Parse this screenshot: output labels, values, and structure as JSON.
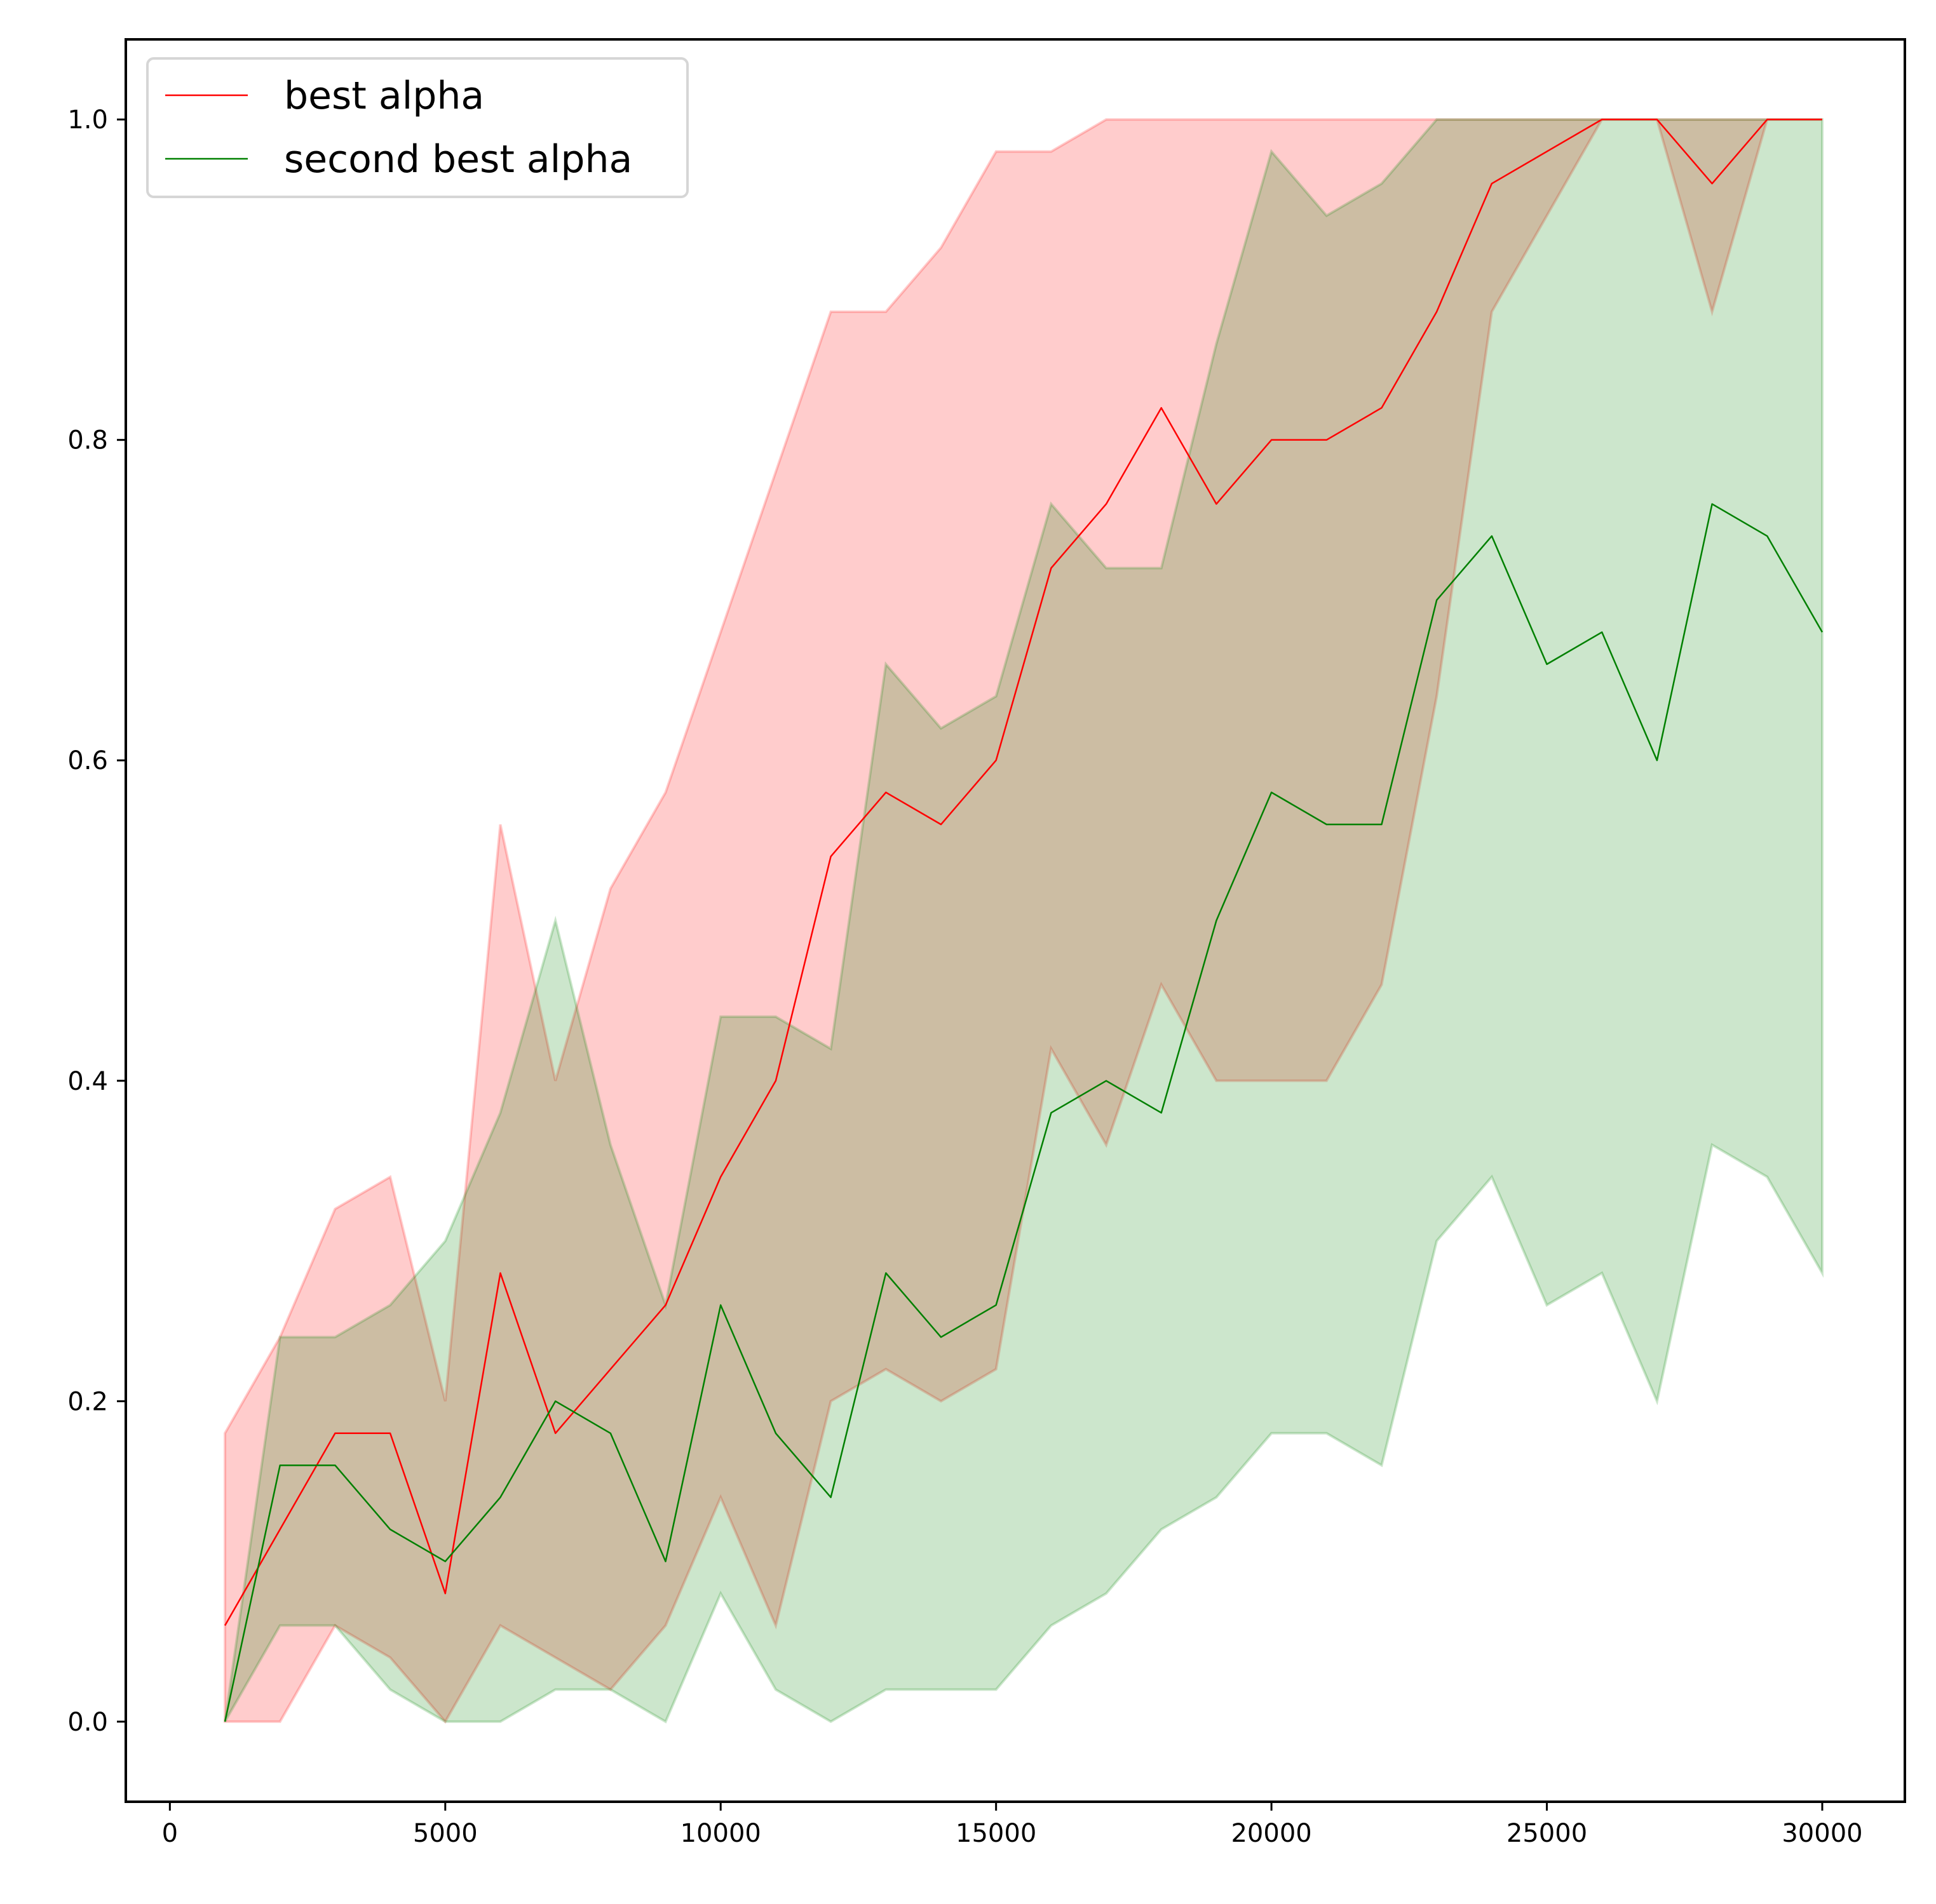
{
  "chart_data": {
    "type": "line",
    "title": "",
    "xlabel": "",
    "ylabel": "",
    "xlim": [
      -800,
      31500
    ],
    "ylim": [
      -0.05,
      1.05
    ],
    "xticks": [
      0,
      5000,
      10000,
      15000,
      20000,
      25000,
      30000
    ],
    "yticks": [
      0.0,
      0.2,
      0.4,
      0.6,
      0.8,
      1.0
    ],
    "x": [
      1000,
      2000,
      3000,
      4000,
      5000,
      6000,
      7000,
      8000,
      9000,
      10000,
      11000,
      12000,
      13000,
      14000,
      15000,
      16000,
      17000,
      18000,
      19000,
      20000,
      21000,
      22000,
      23000,
      24000,
      25000,
      26000,
      27000,
      28000,
      29000,
      30000
    ],
    "legend_position": "upper-left",
    "grid": false,
    "series": [
      {
        "name": "best alpha",
        "color": "#ff0000",
        "fill_color": "#ff0000",
        "values": [
          0.06,
          0.12,
          0.18,
          0.18,
          0.08,
          0.28,
          0.18,
          0.22,
          0.26,
          0.34,
          0.4,
          0.54,
          0.58,
          0.56,
          0.6,
          0.72,
          0.76,
          0.82,
          0.76,
          0.8,
          0.8,
          0.82,
          0.88,
          0.96,
          0.98,
          1.0,
          1.0,
          0.96,
          1.0,
          1.0
        ],
        "upper": [
          0.18,
          0.24,
          0.32,
          0.34,
          0.2,
          0.56,
          0.4,
          0.52,
          0.58,
          0.68,
          0.78,
          0.88,
          0.88,
          0.92,
          0.98,
          0.98,
          1.0,
          1.0,
          1.0,
          1.0,
          1.0,
          1.0,
          1.0,
          1.0,
          1.0,
          1.0,
          1.0,
          1.0,
          1.0,
          1.0
        ],
        "lower": [
          0.0,
          0.0,
          0.06,
          0.04,
          0.0,
          0.06,
          0.04,
          0.02,
          0.06,
          0.14,
          0.06,
          0.2,
          0.22,
          0.2,
          0.22,
          0.42,
          0.36,
          0.46,
          0.4,
          0.4,
          0.4,
          0.46,
          0.64,
          0.88,
          0.94,
          1.0,
          1.0,
          0.88,
          1.0,
          1.0
        ]
      },
      {
        "name": "second best alpha",
        "color": "#008000",
        "fill_color": "#008000",
        "values": [
          0.0,
          0.16,
          0.16,
          0.12,
          0.1,
          0.14,
          0.2,
          0.18,
          0.1,
          0.26,
          0.18,
          0.14,
          0.28,
          0.24,
          0.26,
          0.38,
          0.4,
          0.38,
          0.5,
          0.58,
          0.56,
          0.56,
          0.7,
          0.74,
          0.66,
          0.68,
          0.6,
          0.76,
          0.74,
          0.68
        ],
        "upper": [
          0.0,
          0.24,
          0.24,
          0.26,
          0.3,
          0.38,
          0.5,
          0.36,
          0.26,
          0.44,
          0.44,
          0.42,
          0.66,
          0.62,
          0.64,
          0.76,
          0.72,
          0.72,
          0.86,
          0.98,
          0.94,
          0.96,
          1.0,
          1.0,
          1.0,
          1.0,
          1.0,
          1.0,
          1.0,
          1.0
        ],
        "lower": [
          0.0,
          0.06,
          0.06,
          0.02,
          0.0,
          0.0,
          0.02,
          0.02,
          0.0,
          0.08,
          0.02,
          0.0,
          0.02,
          0.02,
          0.02,
          0.06,
          0.08,
          0.12,
          0.14,
          0.18,
          0.18,
          0.16,
          0.3,
          0.34,
          0.26,
          0.28,
          0.2,
          0.36,
          0.34,
          0.28
        ]
      }
    ]
  }
}
